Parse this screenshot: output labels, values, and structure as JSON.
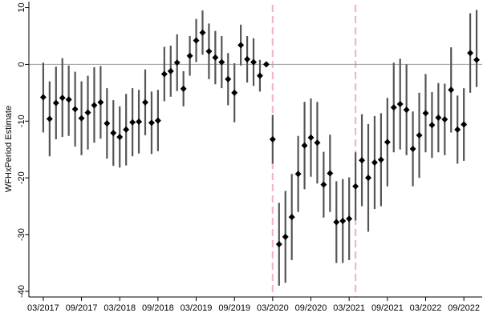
{
  "chart_data": {
    "type": "scatter",
    "title": "",
    "xlabel": "",
    "ylabel": "WFHxPeriod Estimate",
    "ylim": [
      -41,
      10.5
    ],
    "yticks": [
      10,
      0,
      -10,
      -20,
      -30,
      -40
    ],
    "xlim": [
      "2017-02",
      "2022-11"
    ],
    "x_ticks": [
      {
        "date": "2017-03",
        "label": "03/2017"
      },
      {
        "date": "2017-09",
        "label": "09/2017"
      },
      {
        "date": "2018-03",
        "label": "03/2018"
      },
      {
        "date": "2018-09",
        "label": "09/2018"
      },
      {
        "date": "2019-03",
        "label": "03/2019"
      },
      {
        "date": "2019-09",
        "label": "09/2019"
      },
      {
        "date": "2020-03",
        "label": "03/2020"
      },
      {
        "date": "2020-09",
        "label": "09/2020"
      },
      {
        "date": "2021-03",
        "label": "03/2021"
      },
      {
        "date": "2021-09",
        "label": "09/2021"
      },
      {
        "date": "2022-03",
        "label": "03/2022"
      },
      {
        "date": "2022-09",
        "label": "09/2022"
      }
    ],
    "reference_hline": 0,
    "reference_vlines": [
      "2020-03",
      "2021-04"
    ],
    "grid": false,
    "colors": {
      "point": "#000000",
      "ci": "#555555",
      "hline": "#999999",
      "vline": "#f4b6c2"
    },
    "series": [
      {
        "x": [
          "2017-03",
          "2017-04",
          "2017-05",
          "2017-06",
          "2017-07",
          "2017-08",
          "2017-09",
          "2017-10",
          "2017-11",
          "2017-12",
          "2018-01",
          "2018-02",
          "2018-03",
          "2018-04",
          "2018-05",
          "2018-06",
          "2018-07",
          "2018-08",
          "2018-09",
          "2018-10",
          "2018-11",
          "2018-12",
          "2019-01",
          "2019-02",
          "2019-03",
          "2019-04",
          "2019-05",
          "2019-06",
          "2019-07",
          "2019-08",
          "2019-09",
          "2019-10",
          "2019-11",
          "2019-12",
          "2020-01",
          "2020-02",
          "2020-03",
          "2020-04",
          "2020-05",
          "2020-06",
          "2020-07",
          "2020-08",
          "2020-09",
          "2020-10",
          "2020-11",
          "2020-12",
          "2021-01",
          "2021-02",
          "2021-03",
          "2021-04",
          "2021-05",
          "2021-06",
          "2021-07",
          "2021-08",
          "2021-09",
          "2021-10",
          "2021-11",
          "2021-12",
          "2022-01",
          "2022-02",
          "2022-03",
          "2022-04",
          "2022-05",
          "2022-06",
          "2022-07",
          "2022-08",
          "2022-09",
          "2022-10",
          "2022-11"
        ],
        "y": [
          -5.8,
          -9.6,
          -6.8,
          -5.9,
          -6.2,
          -7.9,
          -9.5,
          -8.5,
          -7.2,
          -6.7,
          -10.4,
          -12.1,
          -12.8,
          -11.5,
          -10.2,
          -10.1,
          -6.7,
          -10.3,
          -9.9,
          -1.7,
          -1.2,
          0.3,
          -4.3,
          1.5,
          4.2,
          5.6,
          2.3,
          1.2,
          0.4,
          -2.6,
          -5.0,
          3.4,
          0.9,
          0.4,
          -2.0,
          0.0,
          -13.2,
          -31.7,
          -30.4,
          -26.9,
          -19.3,
          -14.3,
          -12.9,
          -13.8,
          -21.2,
          -19.2,
          -27.8,
          -27.6,
          -27.2,
          -21.5,
          -16.9,
          -20.0,
          -17.3,
          -16.8,
          -13.7,
          -7.6,
          -7.0,
          -8.0,
          -14.9,
          -12.5,
          -8.6,
          -10.7,
          -9.4,
          -9.7,
          -4.5,
          -11.5,
          -10.6,
          2.0,
          0.8
        ],
        "ci_low": [
          -12.0,
          -16.2,
          -13.2,
          -12.8,
          -12.6,
          -14.5,
          -16.0,
          -15.0,
          -13.8,
          -13.1,
          -16.6,
          -17.9,
          -18.2,
          -17.8,
          -16.2,
          -15.7,
          -12.5,
          -15.8,
          -15.3,
          -6.5,
          -5.7,
          -4.7,
          -7.4,
          -2.0,
          0.4,
          1.7,
          -2.6,
          -3.5,
          -4.2,
          -7.2,
          -10.2,
          -0.2,
          -3.2,
          -3.8,
          -4.8,
          0.0,
          -17.5,
          -39.0,
          -38.5,
          -34.5,
          -26.0,
          -22.0,
          -19.8,
          -21.0,
          -27.0,
          -26.0,
          -35.0,
          -35.0,
          -34.5,
          -27.5,
          -25.0,
          -29.5,
          -25.5,
          -25.0,
          -21.5,
          -15.5,
          -15.0,
          -16.0,
          -21.5,
          -20.0,
          -15.5,
          -16.5,
          -15.5,
          -16.0,
          -12.0,
          -17.5,
          -17.0,
          -5.0,
          -4.0
        ],
        "ci_high": [
          0.3,
          -3.0,
          -0.4,
          1.1,
          -0.2,
          -1.3,
          -3.0,
          -2.0,
          -0.5,
          -0.3,
          -4.2,
          -6.3,
          -7.4,
          -5.2,
          -4.2,
          -4.5,
          -0.9,
          -4.8,
          -4.5,
          3.1,
          3.3,
          5.3,
          -1.2,
          5.0,
          8.0,
          9.5,
          7.2,
          5.9,
          5.0,
          2.0,
          0.2,
          7.0,
          5.0,
          4.6,
          0.8,
          0.0,
          -8.9,
          -24.4,
          -22.3,
          -19.3,
          -12.6,
          -6.6,
          -6.0,
          -6.6,
          -15.4,
          -12.4,
          -20.6,
          -20.2,
          -19.9,
          -15.5,
          -8.8,
          -10.5,
          -9.1,
          -8.6,
          -5.9,
          0.3,
          1.0,
          0.0,
          -8.3,
          -5.0,
          -1.7,
          -4.9,
          -3.3,
          -3.4,
          3.0,
          -5.5,
          -4.2,
          9.0,
          9.6
        ]
      }
    ]
  }
}
